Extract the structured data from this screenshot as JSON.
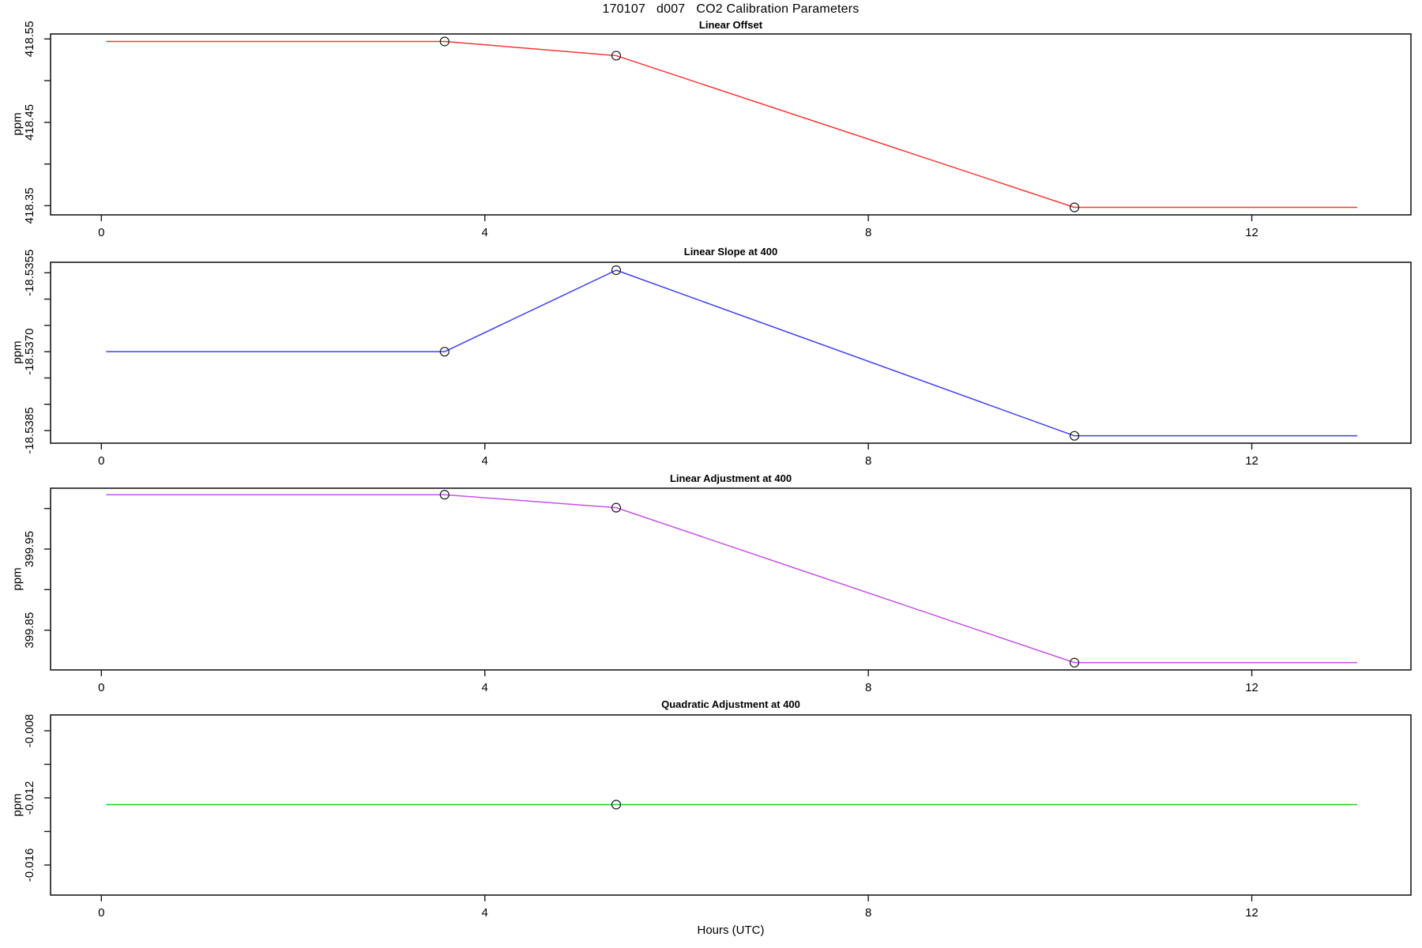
{
  "chart_data": {
    "type": "line",
    "title": "170107   d007   CO2 Calibration Parameters",
    "xlabel": "Hours (UTC)",
    "xlim": [
      -0.53,
      13.66
    ],
    "x_ticks": [
      {
        "v": 0,
        "t": "0"
      },
      {
        "v": 4,
        "t": "4"
      },
      {
        "v": 8,
        "t": "8"
      },
      {
        "v": 12,
        "t": "12"
      }
    ],
    "panels": [
      {
        "title": "Linear Offset",
        "ylabel": "ppm",
        "color": "#f93535",
        "ylim": [
          418.339,
          418.556
        ],
        "y_ticks": [
          {
            "v": 418.35,
            "t": "418.35"
          },
          {
            "v": 418.4,
            "t": ""
          },
          {
            "v": 418.45,
            "t": "418.45"
          },
          {
            "v": 418.5,
            "t": ""
          },
          {
            "v": 418.55,
            "t": "418.55"
          }
        ],
        "x": [
          0.05,
          3.58,
          5.37,
          10.15,
          13.1
        ],
        "y": [
          418.547,
          418.547,
          418.53,
          418.348,
          418.348
        ],
        "markers": [
          {
            "x": 3.58,
            "y": 418.547
          },
          {
            "x": 5.37,
            "y": 418.53
          },
          {
            "x": 10.15,
            "y": 418.348
          }
        ]
      },
      {
        "title": "Linear Slope at 400",
        "ylabel": "ppm",
        "color": "#4040f0",
        "ylim": [
          -18.53874,
          -18.5353
        ],
        "y_ticks": [
          {
            "v": -18.5385,
            "t": "-18.5385"
          },
          {
            "v": -18.538,
            "t": ""
          },
          {
            "v": -18.5375,
            "t": ""
          },
          {
            "v": -18.537,
            "t": "-18.5370"
          },
          {
            "v": -18.5365,
            "t": ""
          },
          {
            "v": -18.536,
            "t": ""
          },
          {
            "v": -18.5355,
            "t": "-18.5355"
          }
        ],
        "x": [
          0.05,
          3.58,
          5.37,
          10.15,
          13.1
        ],
        "y": [
          -18.537,
          -18.537,
          -18.53545,
          -18.5386,
          -18.5386
        ],
        "markers": [
          {
            "x": 3.58,
            "y": -18.537
          },
          {
            "x": 5.37,
            "y": -18.53545
          },
          {
            "x": 10.15,
            "y": -18.5386
          }
        ]
      },
      {
        "title": "Linear Adjustment at 400",
        "ylabel": "ppm",
        "color": "#c653e6",
        "ylim": [
          399.801,
          400.025
        ],
        "y_ticks": [
          {
            "v": 399.85,
            "t": "399.85"
          },
          {
            "v": 399.9,
            "t": ""
          },
          {
            "v": 399.95,
            "t": "399.95"
          },
          {
            "v": 400.0,
            "t": ""
          }
        ],
        "x": [
          0.05,
          3.58,
          5.37,
          10.15,
          13.1
        ],
        "y": [
          400.017,
          400.017,
          400.001,
          399.81,
          399.81
        ],
        "markers": [
          {
            "x": 3.58,
            "y": 400.017
          },
          {
            "x": 5.37,
            "y": 400.001
          },
          {
            "x": 10.15,
            "y": 399.81
          }
        ]
      },
      {
        "title": "Quadratic Adjustment at 400",
        "ylabel": "ppm",
        "color": "#28c828",
        "ylim": [
          -0.01779,
          -0.00706
        ],
        "y_ticks": [
          {
            "v": -0.016,
            "t": "-0.016"
          },
          {
            "v": -0.014,
            "t": ""
          },
          {
            "v": -0.012,
            "t": "-0.012"
          },
          {
            "v": -0.01,
            "t": ""
          },
          {
            "v": -0.008,
            "t": "-0.008"
          }
        ],
        "x": [
          0.05,
          13.1
        ],
        "y": [
          -0.0124,
          -0.0124
        ],
        "markers": [
          {
            "x": 5.37,
            "y": -0.0124
          }
        ]
      }
    ]
  }
}
